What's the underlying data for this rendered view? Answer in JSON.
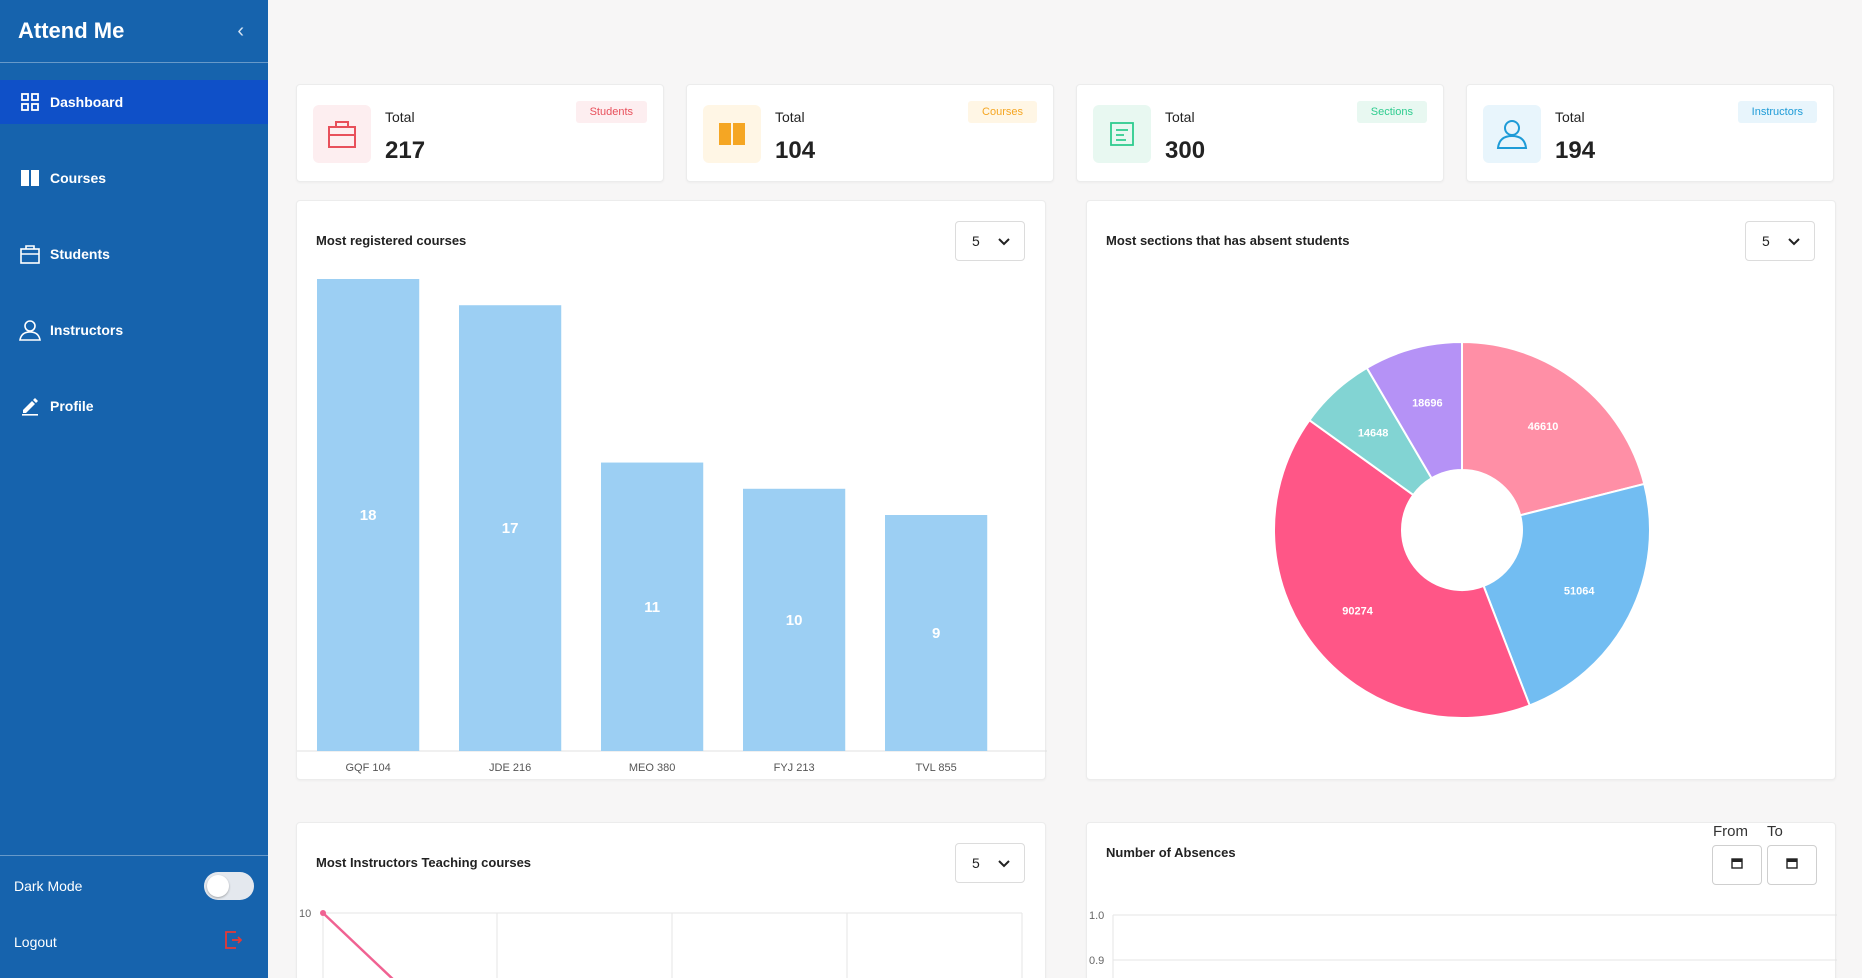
{
  "app": {
    "title": "Attend Me"
  },
  "sidebar": {
    "items": [
      {
        "label": "Dashboard",
        "icon": "grid-icon"
      },
      {
        "label": "Courses",
        "icon": "book-icon"
      },
      {
        "label": "Students",
        "icon": "briefcase-icon"
      },
      {
        "label": "Instructors",
        "icon": "user-icon"
      },
      {
        "label": "Profile",
        "icon": "pencil-icon"
      }
    ],
    "dark_mode_label": "Dark Mode",
    "logout_label": "Logout"
  },
  "stats": [
    {
      "label": "Total",
      "value": "217",
      "badge": "Students",
      "color": "#e8505b",
      "bg": "#fdeef0"
    },
    {
      "label": "Total",
      "value": "104",
      "badge": "Courses",
      "color": "#f5a623",
      "bg": "#fff6e5"
    },
    {
      "label": "Total",
      "value": "300",
      "badge": "Sections",
      "color": "#2ecc8f",
      "bg": "#e8f8f1"
    },
    {
      "label": "Total",
      "value": "194",
      "badge": "Instructors",
      "color": "#1e9bd7",
      "bg": "#e8f5fc"
    }
  ],
  "registered_courses": {
    "title": "Most registered courses",
    "select_value": "5"
  },
  "absent_sections": {
    "title": "Most sections that has absent students",
    "select_value": "5"
  },
  "instructors_teaching": {
    "title": "Most Instructors Teaching courses",
    "select_value": "5"
  },
  "absences": {
    "title": "Number of Absences",
    "from_label": "From",
    "to_label": "To"
  },
  "chart_data": [
    {
      "type": "bar",
      "categories": [
        "GQF 104",
        "JDE 216",
        "MEO 380",
        "FYJ 213",
        "TVL 855"
      ],
      "values": [
        18,
        17,
        11,
        10,
        9
      ],
      "ylim": [
        0,
        18
      ],
      "color": "#9ccff3"
    },
    {
      "type": "pie",
      "labels": [
        "46610",
        "51064",
        "90274",
        "14648",
        "18696"
      ],
      "values": [
        46610,
        51064,
        90274,
        14648,
        18696
      ],
      "colors": [
        "#ff8fa6",
        "#72bdf2",
        "#ff5687",
        "#82d4d3",
        "#b592f6"
      ],
      "donut": true
    },
    {
      "type": "line",
      "yticks": [
        "10"
      ],
      "color": "#f06292"
    },
    {
      "type": "line",
      "yticks": [
        "1.0",
        "0.9"
      ]
    }
  ]
}
